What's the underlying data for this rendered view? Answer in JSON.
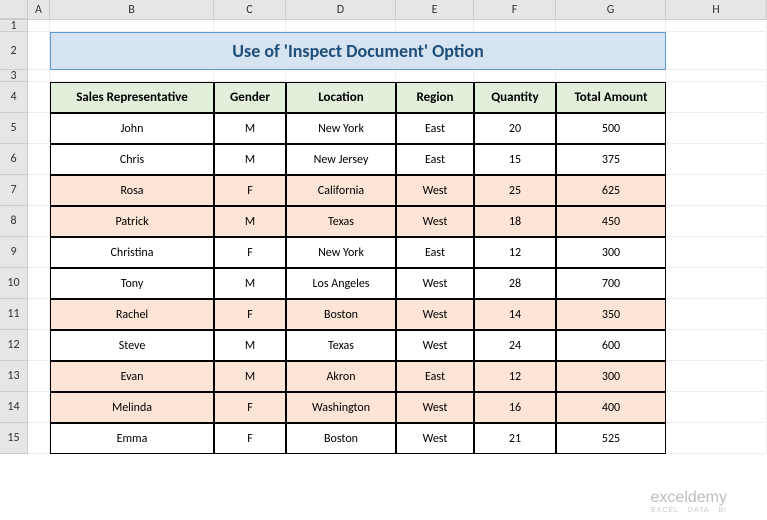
{
  "columns": [
    {
      "label": "A",
      "class": "col-A"
    },
    {
      "label": "B",
      "class": "col-B"
    },
    {
      "label": "C",
      "class": "col-C"
    },
    {
      "label": "D",
      "class": "col-D"
    },
    {
      "label": "E",
      "class": "col-E"
    },
    {
      "label": "F",
      "class": "col-F"
    },
    {
      "label": "G",
      "class": "col-G"
    },
    {
      "label": "H",
      "class": "col-H"
    }
  ],
  "row_heights": {
    "1": 12,
    "2": 38,
    "3": 12,
    "default": 31
  },
  "title": "Use of 'Inspect Document' Option",
  "title_style": {
    "background": "#d6e4f2",
    "border_color": "#5b9bd5",
    "font_size": 18,
    "color": "#1f4e79"
  },
  "table_headers": [
    "Sales Representative",
    "Gender",
    "Location",
    "Region",
    "Quantity",
    "Total Amount"
  ],
  "header_style": {
    "background": "#e2efda",
    "font_weight": "bold",
    "font_size": 13
  },
  "highlight_color": "#fce4d6",
  "rows": [
    {
      "data": [
        "John",
        "M",
        "New York",
        "East",
        "20",
        "500"
      ],
      "highlight": false
    },
    {
      "data": [
        "Chris",
        "M",
        "New Jersey",
        "East",
        "15",
        "375"
      ],
      "highlight": false
    },
    {
      "data": [
        "Rosa",
        "F",
        "California",
        "West",
        "25",
        "625"
      ],
      "highlight": true
    },
    {
      "data": [
        "Patrick",
        "M",
        "Texas",
        "West",
        "18",
        "450"
      ],
      "highlight": true
    },
    {
      "data": [
        "Christina",
        "F",
        "New York",
        "East",
        "12",
        "300"
      ],
      "highlight": false
    },
    {
      "data": [
        "Tony",
        "M",
        "Los Angeles",
        "West",
        "28",
        "700"
      ],
      "highlight": false
    },
    {
      "data": [
        "Rachel",
        "F",
        "Boston",
        "West",
        "14",
        "350"
      ],
      "highlight": true
    },
    {
      "data": [
        "Steve",
        "M",
        "Texas",
        "West",
        "24",
        "600"
      ],
      "highlight": false
    },
    {
      "data": [
        "Evan",
        "M",
        "Akron",
        "East",
        "12",
        "300"
      ],
      "highlight": true
    },
    {
      "data": [
        "Melinda",
        "F",
        "Washington",
        "West",
        "16",
        "400"
      ],
      "highlight": true
    },
    {
      "data": [
        "Emma",
        "F",
        "Boston",
        "West",
        "21",
        "525"
      ],
      "highlight": false
    }
  ],
  "watermark": {
    "main": "exceldemy",
    "sub": "EXCEL · DATA · BI"
  }
}
